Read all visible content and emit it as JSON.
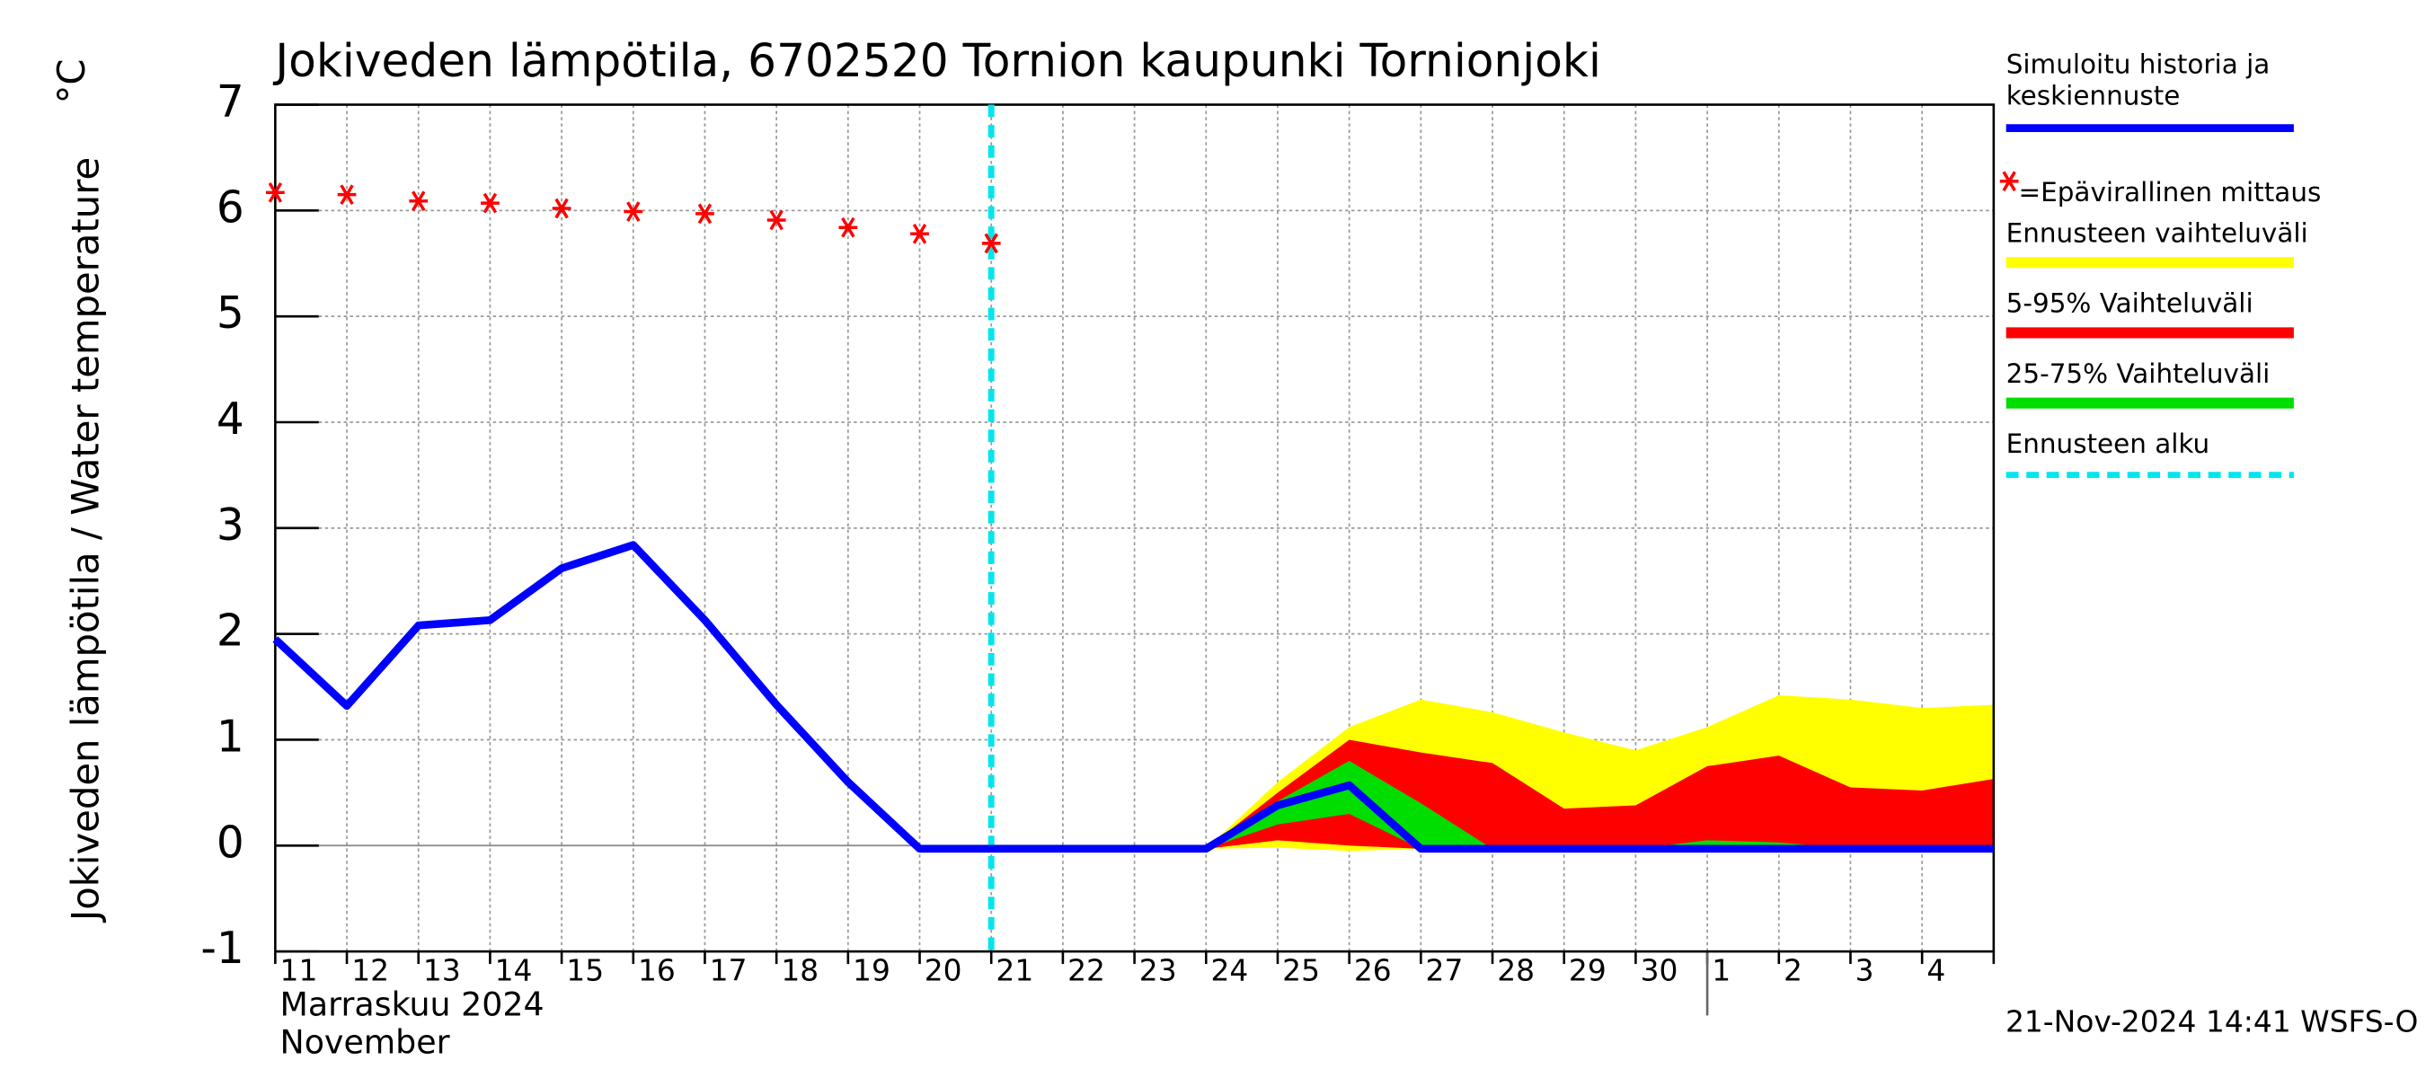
{
  "chart_data": {
    "type": "line",
    "title": "Jokiveden lämpötila, 6702520 Tornion kaupunki Tornionjoki",
    "y_label": "Jokiveden lämpötila / Water temperature",
    "y_unit": "°C",
    "x_label": "Marraskuu 2024",
    "x_label_2": "November",
    "footer": "21-Nov-2024 14:41 WSFS-O",
    "categories": [
      "11",
      "12",
      "13",
      "14",
      "15",
      "16",
      "17",
      "18",
      "19",
      "20",
      "21",
      "22",
      "23",
      "24",
      "25",
      "26",
      "27",
      "28",
      "29",
      "30",
      "1",
      "2",
      "3",
      "4",
      null
    ],
    "month_break": "1",
    "ylim": [
      -1,
      7
    ],
    "yticks": [
      -1,
      0,
      1,
      2,
      3,
      4,
      5,
      6,
      7
    ],
    "grid": true,
    "bands": [
      {
        "name": "Ennusteen vaihteluväli",
        "color": "#ffff00",
        "low": [
          null,
          null,
          null,
          null,
          null,
          null,
          null,
          null,
          null,
          null,
          null,
          null,
          null,
          -0.03,
          -0.02,
          -0.05,
          -0.03,
          -0.03,
          -0.03,
          -0.03,
          -0.03,
          -0.03,
          -0.03,
          -0.03,
          -0.03
        ],
        "high": [
          null,
          null,
          null,
          null,
          null,
          null,
          null,
          null,
          null,
          null,
          null,
          null,
          null,
          -0.03,
          0.6,
          1.12,
          1.38,
          1.26,
          1.07,
          0.9,
          1.12,
          1.42,
          1.38,
          1.3,
          1.33
        ]
      },
      {
        "name": "5-95% Vaihteluväli",
        "color": "#ff0000",
        "low": [
          null,
          null,
          null,
          null,
          null,
          null,
          null,
          null,
          null,
          null,
          null,
          null,
          null,
          -0.03,
          0.05,
          0,
          -0.03,
          -0.03,
          -0.03,
          -0.03,
          -0.03,
          -0.03,
          -0.03,
          -0.03,
          -0.03
        ],
        "high": [
          null,
          null,
          null,
          null,
          null,
          null,
          null,
          null,
          null,
          null,
          null,
          null,
          null,
          -0.03,
          0.5,
          1.0,
          0.88,
          0.78,
          0.35,
          0.38,
          0.75,
          0.85,
          0.55,
          0.52,
          0.63
        ]
      },
      {
        "name": "25-75% Vaihteluväli",
        "color": "#00dd00",
        "low": [
          null,
          null,
          null,
          null,
          null,
          null,
          null,
          null,
          null,
          null,
          null,
          null,
          null,
          -0.03,
          0.2,
          0.3,
          -0.03,
          -0.03,
          -0.03,
          -0.03,
          -0.03,
          -0.03,
          -0.03,
          -0.03,
          -0.03
        ],
        "high": [
          null,
          null,
          null,
          null,
          null,
          null,
          null,
          null,
          null,
          null,
          null,
          null,
          null,
          -0.03,
          0.42,
          0.8,
          0.4,
          -0.03,
          -0.03,
          -0.03,
          0.05,
          0.03,
          -0.03,
          -0.03,
          -0.03
        ]
      }
    ],
    "series": [
      {
        "name": "Simuloitu historia ja keskiennuste",
        "color": "#0000ff",
        "values": [
          1.95,
          1.32,
          2.08,
          2.13,
          2.62,
          2.84,
          2.13,
          1.33,
          0.6,
          -0.03,
          -0.03,
          -0.03,
          -0.03,
          -0.03,
          0.38,
          0.57,
          -0.03,
          -0.03,
          -0.03,
          -0.03,
          -0.03,
          -0.03,
          -0.03,
          -0.03,
          -0.03
        ]
      },
      {
        "name": "=Epävirallinen mittaus",
        "color": "#ff0000",
        "marker": "star",
        "values": [
          6.17,
          6.15,
          6.09,
          6.07,
          6.02,
          5.99,
          5.97,
          5.91,
          5.84,
          5.78,
          5.69,
          null,
          null,
          null,
          null,
          null,
          null,
          null,
          null,
          null,
          null,
          null,
          null,
          null,
          null
        ]
      }
    ],
    "forecast_start": {
      "name": "Ennusteen alku",
      "at": "21",
      "color": "#00e5ee"
    }
  }
}
